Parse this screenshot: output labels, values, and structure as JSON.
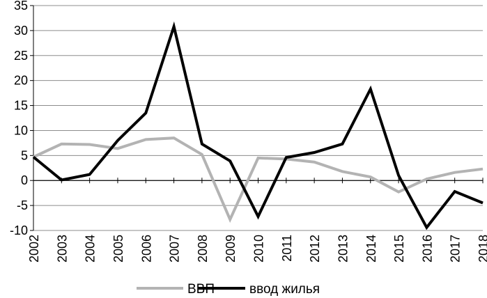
{
  "chart_data": {
    "type": "line",
    "categories": [
      "2002",
      "2003",
      "2004",
      "2005",
      "2006",
      "2007",
      "2008",
      "2009",
      "2010",
      "2011",
      "2012",
      "2013",
      "2014",
      "2015",
      "2016",
      "2017",
      "2018"
    ],
    "series": [
      {
        "name": "ВВП",
        "color": "#b3b3b3",
        "values": [
          4.7,
          7.3,
          7.2,
          6.4,
          8.2,
          8.5,
          5.2,
          -7.8,
          4.5,
          4.3,
          3.7,
          1.8,
          0.7,
          -2.3,
          0.3,
          1.6,
          2.3
        ]
      },
      {
        "name": "ввод жилья",
        "color": "#000000",
        "values": [
          4.7,
          0.1,
          1.2,
          8.0,
          13.5,
          30.8,
          7.3,
          3.9,
          -7.2,
          4.6,
          5.6,
          7.3,
          18.3,
          1.0,
          -9.4,
          -2.2,
          -4.5
        ]
      }
    ],
    "yticks": [
      "35",
      "30",
      "25",
      "20",
      "15",
      "10",
      "5",
      "0",
      "-5",
      "-10"
    ],
    "ylim": [
      -10,
      35
    ],
    "ytick_step": 5,
    "grid": true,
    "legend_position": "bottom"
  }
}
